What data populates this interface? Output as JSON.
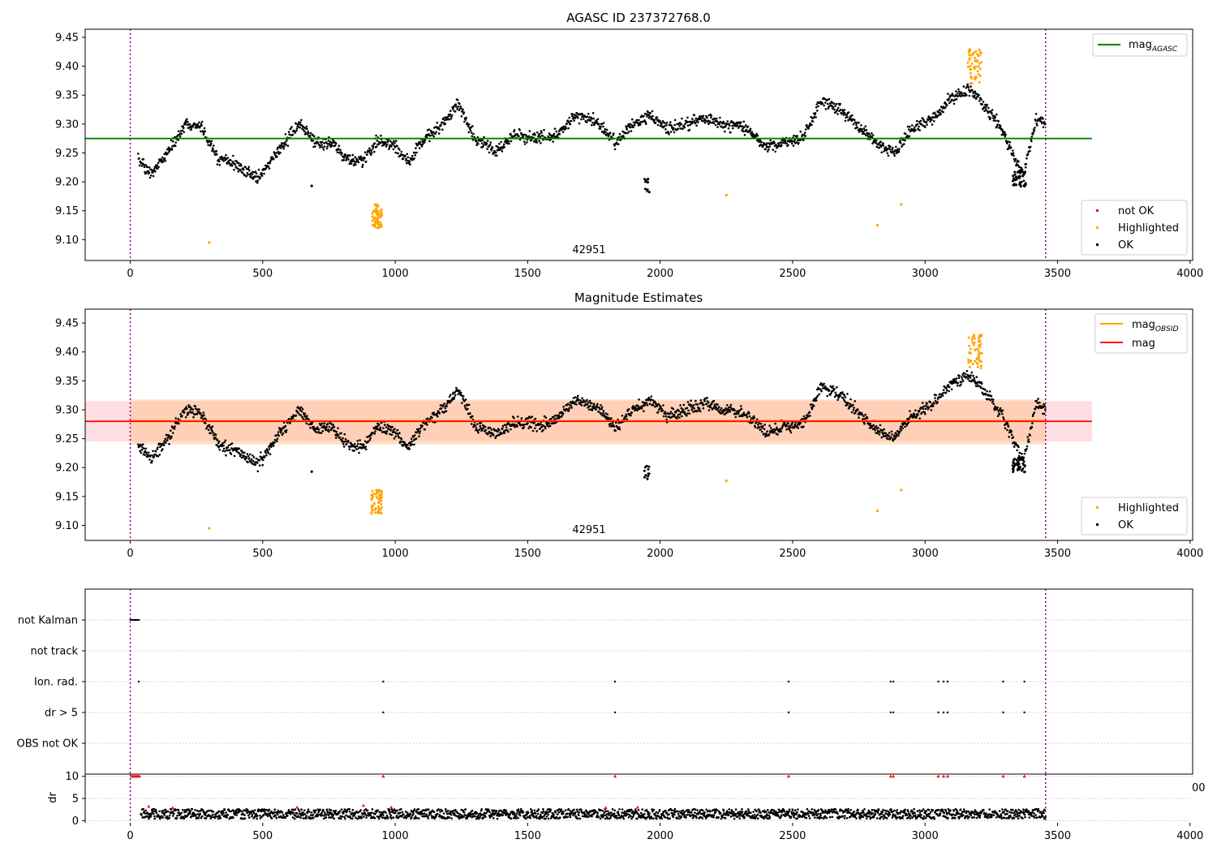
{
  "chart_data": [
    {
      "type": "scatter",
      "title": "AGASC ID 237372768.0",
      "xlim": [
        -170,
        4010
      ],
      "ylim": [
        9.064,
        9.464
      ],
      "xticks": [
        0,
        500,
        1000,
        1500,
        2000,
        2500,
        3000,
        3500,
        4000
      ],
      "yticks": [
        9.1,
        9.15,
        9.2,
        9.25,
        9.3,
        9.35,
        9.4,
        9.45
      ],
      "grid": false,
      "vlines": [
        0,
        3455
      ],
      "annotation": {
        "text": "42951",
        "x": 1727,
        "y": 9.075
      },
      "series": [
        {
          "name": "magAGASC",
          "kind": "line",
          "y": 9.275,
          "x_range": [
            -170,
            3630
          ],
          "color": "#008000"
        },
        {
          "name": "not OK",
          "kind": "points",
          "color": "#ff0000",
          "points": []
        },
        {
          "name": "Highlighted",
          "kind": "points",
          "color": "#ffa500",
          "points": [
            [
              298,
              9.095
            ],
            [
              1950,
              9.183
            ],
            [
              2250,
              9.177
            ],
            [
              2820,
              9.125
            ],
            [
              2910,
              9.161
            ]
          ],
          "clusters": [
            {
              "x": [
                910,
                950
              ],
              "y": [
                9.12,
                9.162
              ],
              "n": 60
            },
            {
              "x": [
                3160,
                3215
              ],
              "y": [
                9.37,
                9.43
              ],
              "n": 55
            }
          ]
        },
        {
          "name": "OK",
          "kind": "points",
          "color": "#000000",
          "points": [
            [
              685,
              9.193
            ]
          ],
          "trend": [
            [
              30,
              9.24
            ],
            [
              80,
              9.215
            ],
            [
              140,
              9.25
            ],
            [
              210,
              9.3
            ],
            [
              270,
              9.295
            ],
            [
              330,
              9.24
            ],
            [
              400,
              9.23
            ],
            [
              480,
              9.205
            ],
            [
              560,
              9.255
            ],
            [
              640,
              9.3
            ],
            [
              700,
              9.265
            ],
            [
              760,
              9.27
            ],
            [
              820,
              9.24
            ],
            [
              880,
              9.235
            ],
            [
              930,
              9.27
            ],
            [
              990,
              9.265
            ],
            [
              1050,
              9.235
            ],
            [
              1100,
              9.27
            ],
            [
              1180,
              9.3
            ],
            [
              1240,
              9.335
            ],
            [
              1300,
              9.275
            ],
            [
              1380,
              9.255
            ],
            [
              1450,
              9.28
            ],
            [
              1530,
              9.275
            ],
            [
              1600,
              9.28
            ],
            [
              1680,
              9.315
            ],
            [
              1760,
              9.305
            ],
            [
              1830,
              9.27
            ],
            [
              1900,
              9.3
            ],
            [
              1960,
              9.315
            ],
            [
              2030,
              9.29
            ],
            [
              2100,
              9.3
            ],
            [
              2170,
              9.31
            ],
            [
              2240,
              9.3
            ],
            [
              2320,
              9.295
            ],
            [
              2400,
              9.26
            ],
            [
              2470,
              9.27
            ],
            [
              2540,
              9.275
            ],
            [
              2610,
              9.34
            ],
            [
              2680,
              9.325
            ],
            [
              2750,
              9.295
            ],
            [
              2810,
              9.27
            ],
            [
              2880,
              9.25
            ],
            [
              2950,
              9.29
            ],
            [
              3030,
              9.31
            ],
            [
              3100,
              9.345
            ],
            [
              3170,
              9.36
            ],
            [
              3230,
              9.33
            ],
            [
              3290,
              9.29
            ],
            [
              3320,
              9.26
            ],
            [
              3370,
              9.21
            ],
            [
              3420,
              9.31
            ],
            [
              3455,
              9.3
            ]
          ],
          "clusters": [
            {
              "x": [
                1940,
                1960
              ],
              "y": [
                9.18,
                9.205
              ],
              "n": 12
            },
            {
              "x": [
                3330,
                3380
              ],
              "y": [
                9.192,
                9.218
              ],
              "n": 40
            }
          ]
        }
      ],
      "legends": [
        {
          "placement": "top-right",
          "entries": [
            {
              "label": "mag",
              "sub": "AGASC",
              "marker": "line",
              "color": "#008000"
            }
          ]
        },
        {
          "placement": "bottom-right",
          "entries": [
            {
              "label": "not OK",
              "marker": "dot",
              "color": "#ff0000"
            },
            {
              "label": "Highlighted",
              "marker": "dot",
              "color": "#ffa500"
            },
            {
              "label": "OK",
              "marker": "dot",
              "color": "#000000"
            }
          ]
        }
      ]
    },
    {
      "type": "scatter",
      "title": "Magnitude Estimates",
      "xlim": [
        -170,
        4010
      ],
      "ylim": [
        9.074,
        9.474
      ],
      "xticks": [
        0,
        500,
        1000,
        1500,
        2000,
        2500,
        3000,
        3500,
        4000
      ],
      "yticks": [
        9.1,
        9.15,
        9.2,
        9.25,
        9.3,
        9.35,
        9.4,
        9.45
      ],
      "grid": false,
      "vlines": [
        0,
        3455
      ],
      "annotation": {
        "text": "42951",
        "x": 1727,
        "y": 9.085
      },
      "bands": [
        {
          "y_range": [
            9.245,
            9.315
          ],
          "x_range": [
            -170,
            3630
          ],
          "color": "#ffb6c1"
        },
        {
          "y_range": [
            9.24,
            9.318
          ],
          "x_range": [
            0,
            3455
          ],
          "color": "#ffbf80"
        }
      ],
      "series": [
        {
          "name": "magOBSID",
          "kind": "line",
          "y": 9.281,
          "x_range": [
            0,
            3455
          ],
          "color": "#ffa500"
        },
        {
          "name": "mag",
          "kind": "line",
          "y": 9.28,
          "x_range": [
            -170,
            3630
          ],
          "color": "#ff0000"
        },
        {
          "name": "Highlighted",
          "kind": "points",
          "color": "#ffa500",
          "points": [
            [
              298,
              9.095
            ],
            [
              1950,
              9.183
            ],
            [
              2250,
              9.177
            ],
            [
              2820,
              9.125
            ],
            [
              2910,
              9.161
            ]
          ],
          "clusters": [
            {
              "x": [
                910,
                950
              ],
              "y": [
                9.12,
                9.162
              ],
              "n": 60
            },
            {
              "x": [
                3160,
                3215
              ],
              "y": [
                9.37,
                9.43
              ],
              "n": 55
            }
          ]
        },
        {
          "name": "OK",
          "kind": "points",
          "color": "#000000",
          "points": [
            [
              685,
              9.193
            ]
          ],
          "trend": [
            [
              30,
              9.24
            ],
            [
              80,
              9.215
            ],
            [
              140,
              9.25
            ],
            [
              210,
              9.3
            ],
            [
              270,
              9.295
            ],
            [
              330,
              9.24
            ],
            [
              400,
              9.23
            ],
            [
              480,
              9.205
            ],
            [
              560,
              9.255
            ],
            [
              640,
              9.3
            ],
            [
              700,
              9.265
            ],
            [
              760,
              9.27
            ],
            [
              820,
              9.24
            ],
            [
              880,
              9.235
            ],
            [
              930,
              9.27
            ],
            [
              990,
              9.265
            ],
            [
              1050,
              9.235
            ],
            [
              1100,
              9.27
            ],
            [
              1180,
              9.3
            ],
            [
              1240,
              9.335
            ],
            [
              1300,
              9.275
            ],
            [
              1380,
              9.255
            ],
            [
              1450,
              9.28
            ],
            [
              1530,
              9.275
            ],
            [
              1600,
              9.28
            ],
            [
              1680,
              9.315
            ],
            [
              1760,
              9.305
            ],
            [
              1830,
              9.27
            ],
            [
              1900,
              9.3
            ],
            [
              1960,
              9.315
            ],
            [
              2030,
              9.29
            ],
            [
              2100,
              9.3
            ],
            [
              2170,
              9.31
            ],
            [
              2240,
              9.3
            ],
            [
              2320,
              9.295
            ],
            [
              2400,
              9.26
            ],
            [
              2470,
              9.27
            ],
            [
              2540,
              9.275
            ],
            [
              2610,
              9.34
            ],
            [
              2680,
              9.325
            ],
            [
              2750,
              9.295
            ],
            [
              2810,
              9.27
            ],
            [
              2880,
              9.25
            ],
            [
              2950,
              9.29
            ],
            [
              3030,
              9.31
            ],
            [
              3100,
              9.345
            ],
            [
              3170,
              9.36
            ],
            [
              3230,
              9.33
            ],
            [
              3290,
              9.29
            ],
            [
              3320,
              9.26
            ],
            [
              3370,
              9.21
            ],
            [
              3420,
              9.31
            ],
            [
              3455,
              9.3
            ]
          ],
          "clusters": [
            {
              "x": [
                1940,
                1960
              ],
              "y": [
                9.18,
                9.205
              ],
              "n": 12
            },
            {
              "x": [
                3330,
                3380
              ],
              "y": [
                9.192,
                9.218
              ],
              "n": 40
            }
          ]
        }
      ],
      "legends": [
        {
          "placement": "top-right",
          "entries": [
            {
              "label": "mag",
              "sub": "OBSID",
              "marker": "line",
              "color": "#ffa500"
            },
            {
              "label": "mag",
              "sub": "",
              "marker": "line",
              "color": "#ff0000"
            }
          ]
        },
        {
          "placement": "bottom-right",
          "entries": [
            {
              "label": "Highlighted",
              "marker": "dot",
              "color": "#ffa500"
            },
            {
              "label": "OK",
              "marker": "dot",
              "color": "#000000"
            }
          ]
        }
      ]
    },
    {
      "type": "scatter",
      "title": "",
      "xlim": [
        -170,
        4010
      ],
      "categories": [
        "not Kalman",
        "not track",
        "Ion. rad.",
        "dr > 5",
        "OBS not OK"
      ],
      "grid": true,
      "vlines": [
        0,
        3455
      ],
      "flags": {
        "not Kalman": [
          [
            0,
            35
          ]
        ],
        "not track": [],
        "Ion. rad.": [
          32,
          955,
          1830,
          2485,
          2870,
          2880,
          3050,
          3070,
          3085,
          3295,
          3375
        ],
        "dr > 5": [
          955,
          1830,
          2485,
          2870,
          2880,
          3050,
          3070,
          3085,
          3295,
          3375
        ],
        "OBS not OK": []
      }
    },
    {
      "type": "scatter",
      "title": "",
      "xlim": [
        -170,
        4010
      ],
      "ylim": [
        -0.5,
        10.5
      ],
      "xticks": [
        0,
        500,
        1000,
        1500,
        2000,
        2500,
        3000,
        3500,
        4000
      ],
      "yticks": [
        0,
        5,
        10
      ],
      "ylabel": "dr",
      "grid": true,
      "vlines": [
        0,
        3455
      ],
      "hidden_tick_label": "00",
      "series": [
        {
          "name": "dr",
          "kind": "points",
          "color": "#000000",
          "band": [
            0.4,
            2.6
          ],
          "x_range": [
            40,
            3455
          ]
        },
        {
          "name": "dr > 5",
          "kind": "points",
          "color": "#ff0000",
          "points": [
            [
              5,
              10
            ],
            [
              10,
              10
            ],
            [
              15,
              10
            ],
            [
              20,
              10
            ],
            [
              25,
              10
            ],
            [
              30,
              10
            ],
            [
              35,
              10
            ],
            [
              955,
              10
            ],
            [
              1830,
              10
            ],
            [
              2485,
              10
            ],
            [
              2870,
              10
            ],
            [
              2880,
              10
            ],
            [
              3050,
              10
            ],
            [
              3070,
              10
            ],
            [
              3085,
              10
            ],
            [
              3295,
              10
            ],
            [
              3375,
              10
            ],
            [
              70,
              3.2
            ],
            [
              160,
              2.9
            ],
            [
              630,
              3.0
            ],
            [
              880,
              3.4
            ],
            [
              985,
              3.0
            ],
            [
              1795,
              2.9
            ],
            [
              1915,
              3.0
            ]
          ]
        }
      ]
    }
  ]
}
